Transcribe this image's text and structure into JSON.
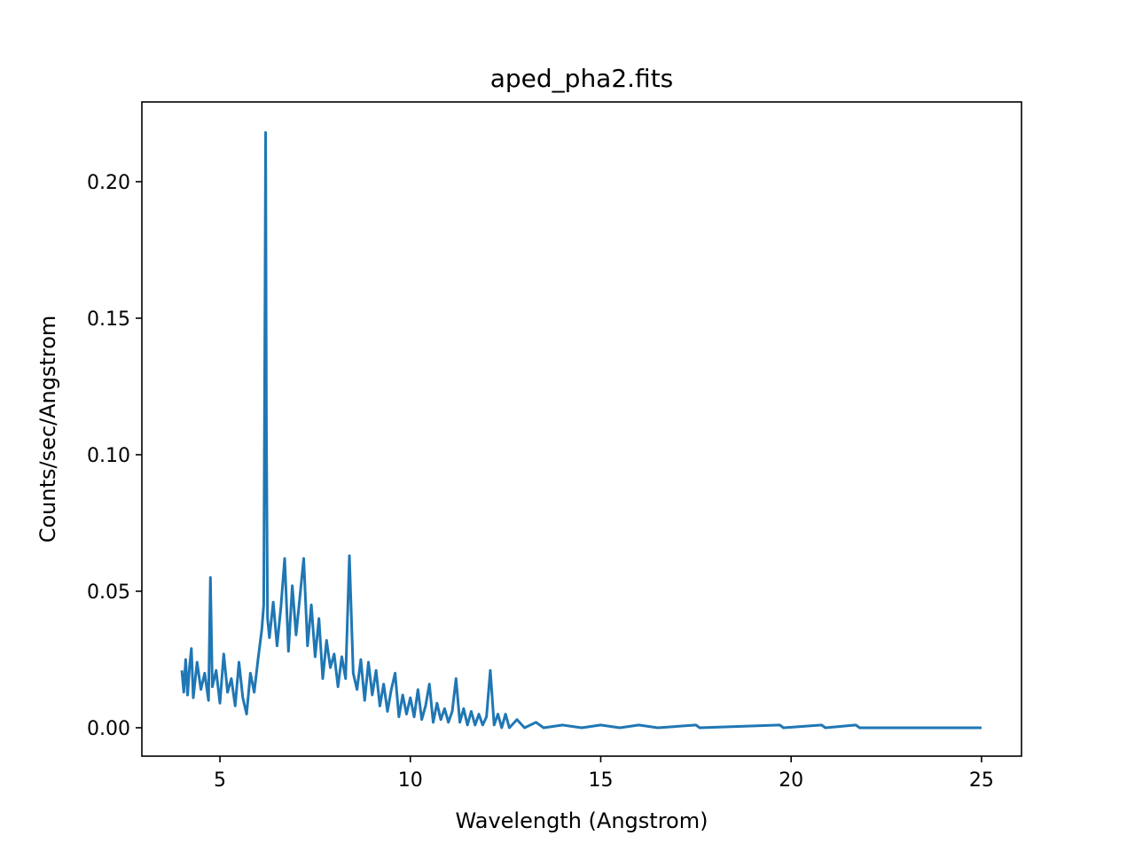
{
  "chart_data": {
    "type": "line",
    "title": "aped_pha2.fits",
    "xlabel": "Wavelength (Angstrom)",
    "ylabel": "Counts/sec/Angstrom",
    "x": [
      4.0,
      4.05,
      4.1,
      4.15,
      4.2,
      4.25,
      4.3,
      4.4,
      4.5,
      4.6,
      4.7,
      4.75,
      4.8,
      4.9,
      5.0,
      5.1,
      5.2,
      5.3,
      5.4,
      5.5,
      5.6,
      5.7,
      5.8,
      5.9,
      6.0,
      6.1,
      6.15,
      6.18,
      6.2,
      6.22,
      6.25,
      6.3,
      6.4,
      6.5,
      6.6,
      6.7,
      6.8,
      6.9,
      7.0,
      7.1,
      7.2,
      7.3,
      7.4,
      7.5,
      7.6,
      7.7,
      7.8,
      7.9,
      8.0,
      8.1,
      8.2,
      8.3,
      8.4,
      8.5,
      8.6,
      8.7,
      8.8,
      8.9,
      9.0,
      9.1,
      9.2,
      9.3,
      9.4,
      9.5,
      9.6,
      9.7,
      9.8,
      9.9,
      10.0,
      10.1,
      10.2,
      10.3,
      10.4,
      10.5,
      10.6,
      10.7,
      10.8,
      10.9,
      11.0,
      11.1,
      11.2,
      11.3,
      11.4,
      11.5,
      11.6,
      11.7,
      11.8,
      11.9,
      12.0,
      12.1,
      12.2,
      12.3,
      12.4,
      12.5,
      12.6,
      12.8,
      13.0,
      13.3,
      13.5,
      14.0,
      14.5,
      15.0,
      15.5,
      16.0,
      16.5,
      17.5,
      17.6,
      19.7,
      19.8,
      20.8,
      20.9,
      21.7,
      21.8,
      25.0
    ],
    "series": [
      {
        "name": "spectrum",
        "color": "#1f77b4",
        "values": [
          0.021,
          0.013,
          0.025,
          0.012,
          0.022,
          0.029,
          0.011,
          0.024,
          0.014,
          0.02,
          0.01,
          0.055,
          0.015,
          0.021,
          0.009,
          0.027,
          0.013,
          0.018,
          0.008,
          0.024,
          0.011,
          0.005,
          0.02,
          0.013,
          0.025,
          0.036,
          0.045,
          0.145,
          0.218,
          0.11,
          0.04,
          0.033,
          0.046,
          0.03,
          0.044,
          0.062,
          0.028,
          0.052,
          0.034,
          0.048,
          0.062,
          0.03,
          0.045,
          0.026,
          0.04,
          0.018,
          0.032,
          0.022,
          0.027,
          0.015,
          0.026,
          0.018,
          0.063,
          0.02,
          0.014,
          0.025,
          0.01,
          0.024,
          0.012,
          0.021,
          0.008,
          0.016,
          0.006,
          0.014,
          0.02,
          0.004,
          0.012,
          0.005,
          0.011,
          0.004,
          0.014,
          0.003,
          0.008,
          0.016,
          0.002,
          0.009,
          0.003,
          0.007,
          0.002,
          0.006,
          0.018,
          0.002,
          0.007,
          0.001,
          0.006,
          0.001,
          0.005,
          0.001,
          0.004,
          0.021,
          0.001,
          0.005,
          0,
          0.005,
          0,
          0.003,
          0,
          0.002,
          0,
          0.001,
          0,
          0.001,
          0,
          0.001,
          0,
          0.001,
          0,
          0.001,
          0,
          0.001,
          0,
          0.001,
          0,
          0
        ]
      }
    ],
    "xlim": [
      2.95,
      26.05
    ],
    "xticks": [
      5,
      10,
      15,
      20,
      25
    ],
    "ylim": [
      -0.0104,
      0.2292
    ],
    "yticks": [
      {
        "value": 0,
        "label": "0.00"
      },
      {
        "value": 0.05,
        "label": "0.05"
      },
      {
        "value": 0.1,
        "label": "0.10"
      },
      {
        "value": 0.15,
        "label": "0.15"
      },
      {
        "value": 0.2,
        "label": "0.20"
      }
    ],
    "grid": false
  }
}
